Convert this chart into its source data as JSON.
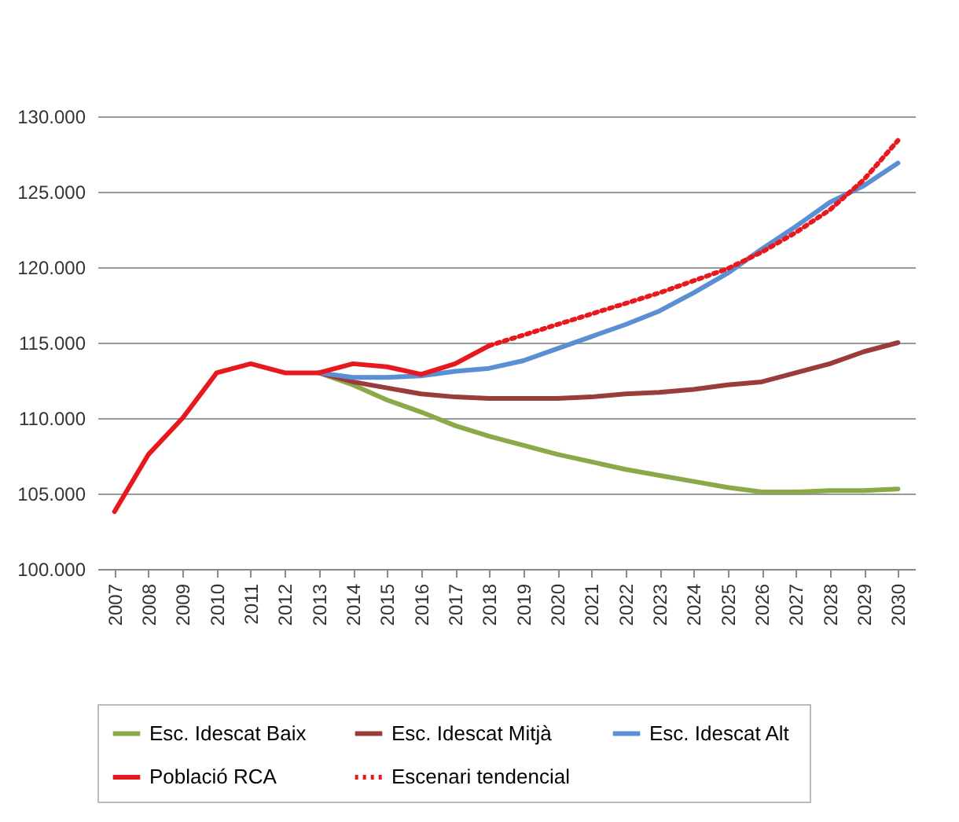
{
  "chart_data": {
    "type": "line",
    "categories": [
      "2007",
      "2008",
      "2009",
      "2010",
      "2011",
      "2012",
      "2013",
      "2014",
      "2015",
      "2016",
      "2017",
      "2018",
      "2019",
      "2020",
      "2021",
      "2022",
      "2023",
      "2024",
      "2025",
      "2026",
      "2027",
      "2028",
      "2029",
      "2030"
    ],
    "series": [
      {
        "name": "Esc. Idescat  Baix",
        "color": "#8aaa4a",
        "values": [
          null,
          null,
          null,
          null,
          null,
          null,
          113000,
          112200,
          111200,
          110400,
          109500,
          108800,
          108200,
          107600,
          107100,
          106600,
          106200,
          105800,
          105400,
          105100,
          105100,
          105200,
          105200,
          105300
        ]
      },
      {
        "name": "Esc. Idescat  Mitjà",
        "color": "#9b3c3c",
        "values": [
          null,
          null,
          null,
          null,
          null,
          null,
          113000,
          112400,
          112000,
          111600,
          111400,
          111300,
          111300,
          111300,
          111400,
          111600,
          111700,
          111900,
          112200,
          112400,
          113000,
          113600,
          114400,
          115000
        ]
      },
      {
        "name": "Esc. Idescat  Alt",
        "color": "#5b8fd4",
        "values": [
          null,
          null,
          null,
          null,
          null,
          null,
          113000,
          112700,
          112700,
          112800,
          113100,
          113300,
          113800,
          114600,
          115400,
          116200,
          117100,
          118300,
          119600,
          121200,
          122700,
          124300,
          125400,
          126900
        ]
      },
      {
        "name": "Població RCA",
        "color": "#e8191e",
        "values": [
          103800,
          107600,
          110000,
          113000,
          113600,
          113000,
          113000,
          113600,
          113400,
          112900,
          113600,
          114800,
          null,
          null,
          null,
          null,
          null,
          null,
          null,
          null,
          null,
          null,
          null,
          null
        ]
      },
      {
        "name": "Escenari tendencial",
        "color": "#e8191e",
        "line_style": "dotted",
        "values": [
          null,
          null,
          null,
          null,
          null,
          null,
          null,
          null,
          null,
          null,
          null,
          114800,
          115500,
          116200,
          116900,
          117600,
          118300,
          119100,
          119900,
          121000,
          122300,
          123800,
          125800,
          128400
        ]
      }
    ],
    "ylim": [
      100000,
      130000
    ],
    "yticks": [
      {
        "value": 100000,
        "label": "100.000"
      },
      {
        "value": 105000,
        "label": "105.000"
      },
      {
        "value": 110000,
        "label": "110.000"
      },
      {
        "value": 115000,
        "label": "115.000"
      },
      {
        "value": 120000,
        "label": "120.000"
      },
      {
        "value": 125000,
        "label": "125.000"
      },
      {
        "value": 130000,
        "label": "130.000"
      }
    ],
    "grid": "y",
    "legend": "bottom",
    "line_style": "solid"
  }
}
